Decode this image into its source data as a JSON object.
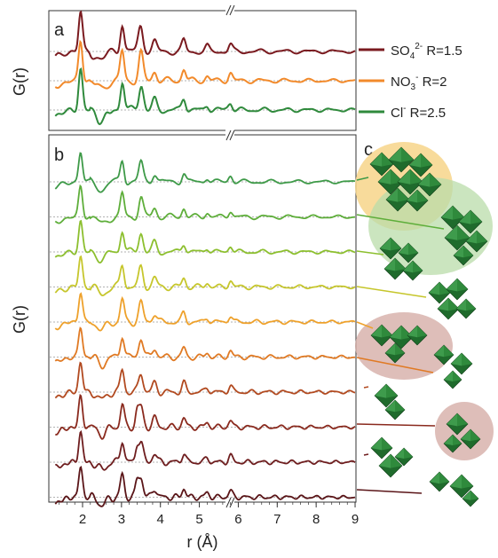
{
  "chart_data": [
    {
      "panel": "a",
      "type": "line",
      "xlabel": "",
      "ylabel": "G(r)",
      "legend_position": "right",
      "x_ticks": [],
      "series": [
        {
          "name": "SO₄²⁻ R=1.5",
          "color": "#7a1a1f",
          "peaks": [
            [
              1.95,
              1.0
            ],
            [
              2.25,
              -0.3
            ],
            [
              3.0,
              0.55
            ],
            [
              3.45,
              0.75
            ],
            [
              3.6,
              0.2
            ],
            [
              4.6,
              0.15
            ]
          ]
        },
        {
          "name": "NO₃⁻ R=2",
          "color": "#f28a2b",
          "peaks": [
            [
              1.95,
              1.0
            ],
            [
              2.3,
              -0.45
            ],
            [
              3.0,
              0.7
            ],
            [
              3.5,
              0.9
            ],
            [
              4.6,
              0.3
            ],
            [
              5.8,
              0.15
            ]
          ]
        },
        {
          "name": "Cl⁻ R=2.5",
          "color": "#2f8a3c",
          "peaks": [
            [
              1.95,
              1.1
            ],
            [
              2.4,
              -0.4
            ],
            [
              2.7,
              -0.6
            ],
            [
              3.05,
              0.85
            ],
            [
              3.55,
              0.75
            ],
            [
              4.6,
              0.35
            ],
            [
              5.7,
              0.2
            ]
          ]
        }
      ]
    },
    {
      "panel": "b",
      "type": "line",
      "xlabel": "r (Å)",
      "ylabel": "G(r)",
      "xlim": [
        1.3,
        9
      ],
      "x_ticks": [
        2,
        3,
        4,
        5,
        6,
        7,
        8,
        9
      ],
      "axis_break_at": 5,
      "series_count": 10,
      "series_colors": [
        "#3e9a48",
        "#5eae3a",
        "#8cbf2e",
        "#c6c62c",
        "#eea12b",
        "#e07a24",
        "#b24a20",
        "#8a2a1e",
        "#6e1d1e",
        "#5a1518"
      ]
    }
  ],
  "panel_labels": {
    "a": "a",
    "b": "b",
    "c": "c"
  },
  "legend": [
    {
      "label_main": "SO",
      "sub": "4",
      "sup": "2-",
      "rest": " R=1.5",
      "color": "#7a1a1f"
    },
    {
      "label_main": "NO",
      "sub": "3",
      "sup": "-",
      "rest": " R=2",
      "color": "#f28a2b"
    },
    {
      "label_main": "Cl",
      "sub": "",
      "sup": "-",
      "rest": " R=2.5",
      "color": "#2f8a3c"
    }
  ],
  "panel_c": {
    "description_icons": [
      "octahedra-cluster-icon"
    ],
    "colors": {
      "octahedra": "#1f6b2c",
      "highlight_yellow": "#f5d27a",
      "highlight_green": "#bfe0b5",
      "highlight_pink": "#d9b3ad"
    }
  }
}
